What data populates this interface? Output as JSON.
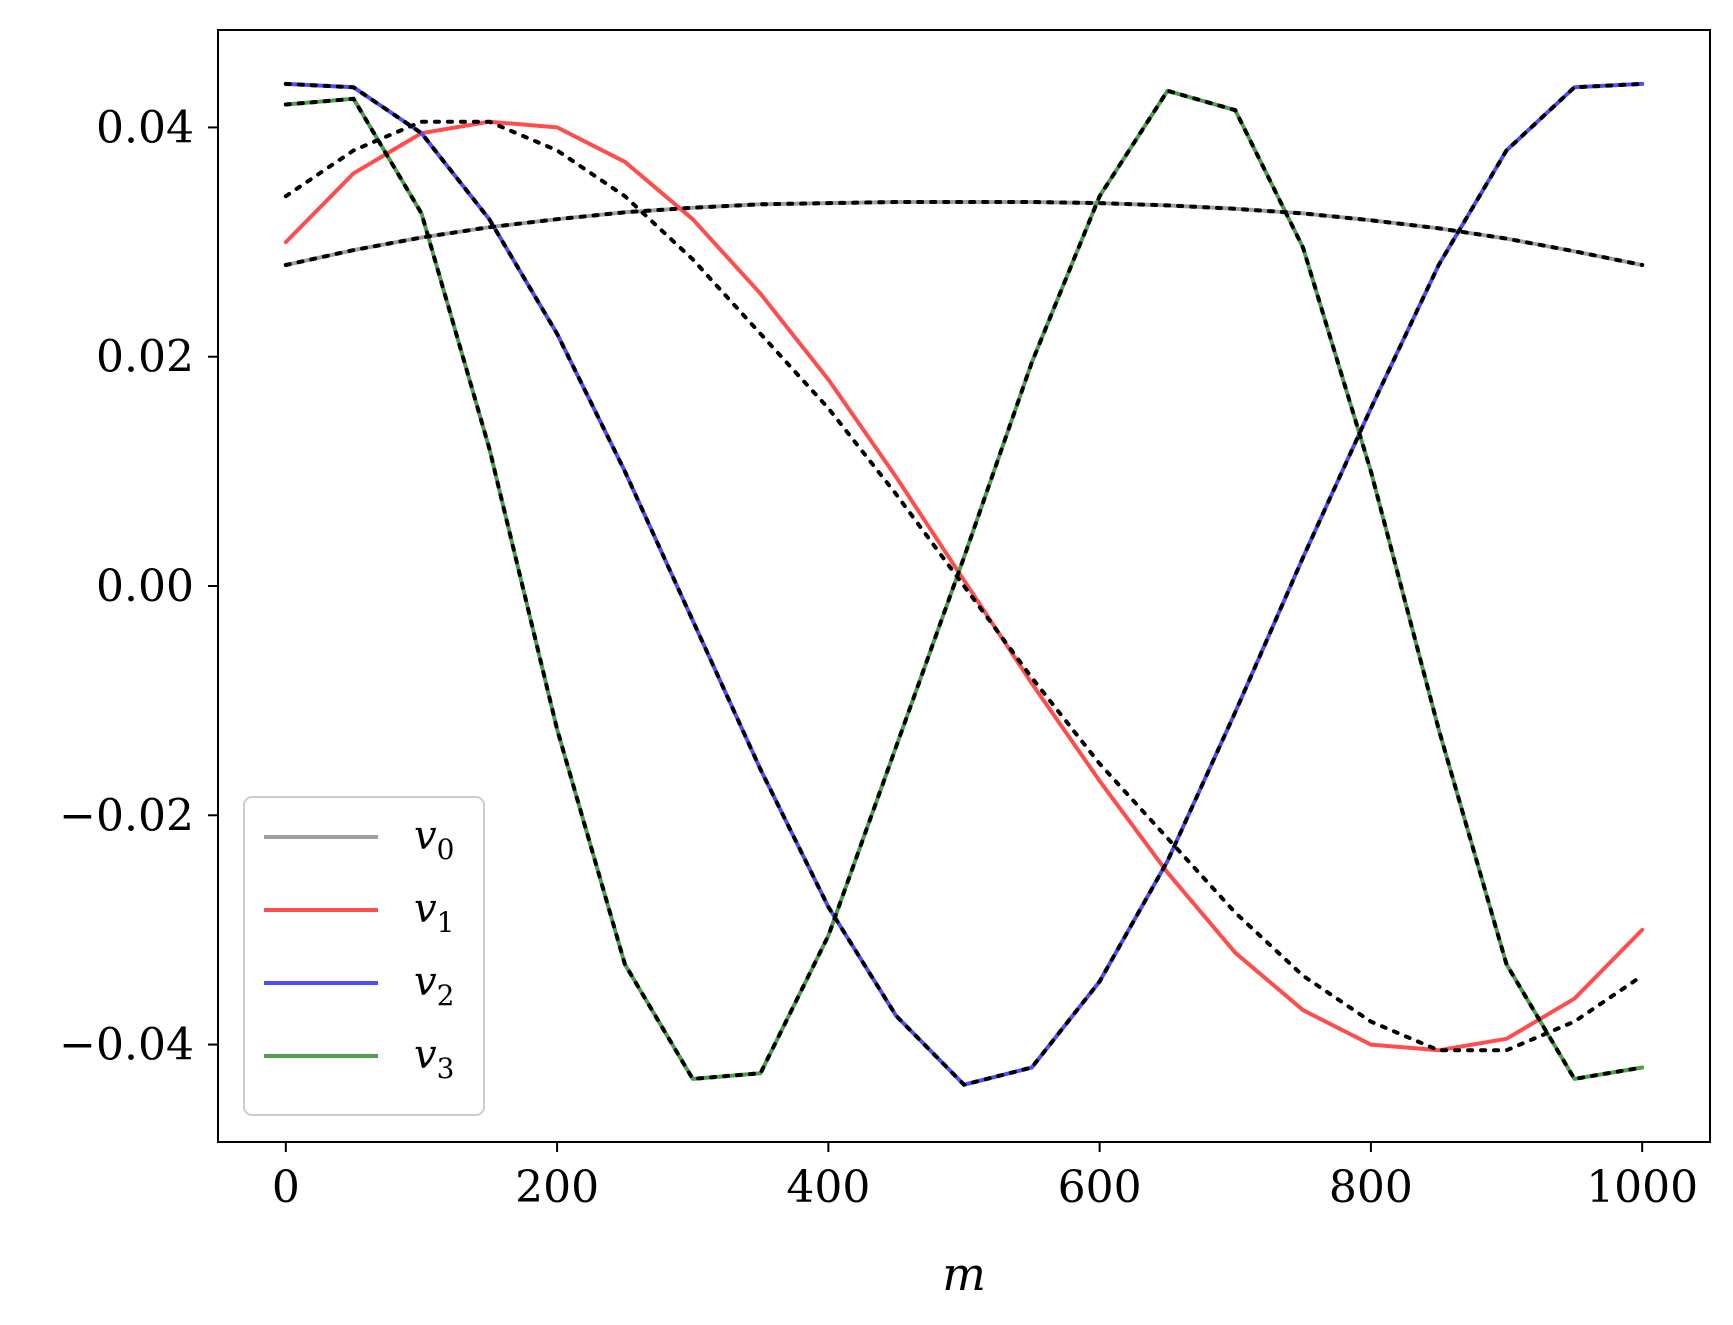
{
  "chart_data": {
    "type": "line",
    "xlabel": "m",
    "ylabel": "",
    "title": "",
    "xlim": [
      -50,
      1050
    ],
    "ylim": [
      -0.0485,
      0.0485
    ],
    "xticks": [
      0,
      200,
      400,
      600,
      800,
      1000
    ],
    "xtick_labels": [
      "0",
      "200",
      "400",
      "600",
      "800",
      "1000"
    ],
    "yticks": [
      0.04,
      0.02,
      0.0,
      -0.02,
      -0.04
    ],
    "ytick_labels": [
      "0.04",
      "0.02",
      "0.00",
      "−0.02",
      "−0.04"
    ],
    "grid": false,
    "legend": {
      "position": "lower-left"
    },
    "x": [
      0,
      50,
      100,
      150,
      200,
      250,
      300,
      350,
      400,
      450,
      500,
      550,
      600,
      650,
      700,
      750,
      800,
      850,
      900,
      950,
      1000
    ],
    "series": [
      {
        "name": "v",
        "subscript": "0",
        "color": "#a0a0a0",
        "values": [
          0.028,
          0.0293,
          0.0304,
          0.0313,
          0.032,
          0.0326,
          0.033,
          0.0333,
          0.0334,
          0.0335,
          0.0335,
          0.0335,
          0.0334,
          0.0332,
          0.0329,
          0.0325,
          0.0319,
          0.0312,
          0.0303,
          0.0292,
          0.028
        ]
      },
      {
        "name": "v",
        "subscript": "1",
        "color": "#ff4d4d",
        "values": [
          0.03,
          0.036,
          0.0395,
          0.0405,
          0.04,
          0.037,
          0.032,
          0.0255,
          0.018,
          0.0095,
          0.0005,
          -0.0085,
          -0.017,
          -0.025,
          -0.032,
          -0.037,
          -0.04,
          -0.0405,
          -0.0395,
          -0.036,
          -0.03
        ]
      },
      {
        "name": "v",
        "subscript": "2",
        "color": "#4d4dff",
        "values": [
          0.0438,
          0.0435,
          0.0395,
          0.032,
          0.022,
          0.01,
          -0.003,
          -0.016,
          -0.028,
          -0.0375,
          -0.0435,
          -0.042,
          -0.0345,
          -0.024,
          -0.011,
          0.0025,
          0.0155,
          0.028,
          0.038,
          0.0435,
          0.0438
        ]
      },
      {
        "name": "v",
        "subscript": "3",
        "color": "#4d9e4d",
        "values": [
          0.042,
          0.0425,
          0.0325,
          0.012,
          -0.0125,
          -0.033,
          -0.043,
          -0.0425,
          -0.0305,
          -0.014,
          0.0025,
          0.0195,
          0.034,
          0.0432,
          0.0415,
          0.0295,
          0.01,
          -0.0125,
          -0.033,
          -0.043,
          -0.042
        ]
      }
    ],
    "reference_curves": [
      {
        "style": "dotted",
        "color": "#000000",
        "values": [
          0.028,
          0.0293,
          0.0304,
          0.0313,
          0.032,
          0.0326,
          0.033,
          0.0333,
          0.0334,
          0.0335,
          0.0335,
          0.0335,
          0.0334,
          0.0332,
          0.0329,
          0.0325,
          0.0319,
          0.0312,
          0.0303,
          0.0292,
          0.028
        ]
      },
      {
        "style": "dotted",
        "color": "#000000",
        "values": [
          0.034,
          0.038,
          0.0405,
          0.0405,
          0.038,
          0.034,
          0.0285,
          0.022,
          0.0155,
          0.008,
          0.0,
          -0.008,
          -0.0155,
          -0.022,
          -0.0285,
          -0.034,
          -0.038,
          -0.0405,
          -0.0405,
          -0.038,
          -0.034
        ]
      },
      {
        "style": "dotted",
        "color": "#000000",
        "values": [
          0.0438,
          0.0435,
          0.0395,
          0.032,
          0.022,
          0.01,
          -0.003,
          -0.016,
          -0.028,
          -0.0375,
          -0.0435,
          -0.042,
          -0.0345,
          -0.024,
          -0.011,
          0.0025,
          0.0155,
          0.028,
          0.038,
          0.0435,
          0.0438
        ]
      },
      {
        "style": "dotted",
        "color": "#000000",
        "values": [
          0.042,
          0.0425,
          0.0325,
          0.012,
          -0.0125,
          -0.033,
          -0.043,
          -0.0425,
          -0.0305,
          -0.014,
          0.0025,
          0.0195,
          0.034,
          0.0432,
          0.0415,
          0.0295,
          0.01,
          -0.0125,
          -0.033,
          -0.043,
          -0.042
        ]
      }
    ]
  }
}
